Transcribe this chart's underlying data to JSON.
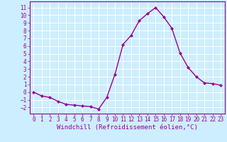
{
  "x": [
    0,
    1,
    2,
    3,
    4,
    5,
    6,
    7,
    8,
    9,
    10,
    11,
    12,
    13,
    14,
    15,
    16,
    17,
    18,
    19,
    20,
    21,
    22,
    23
  ],
  "y": [
    0,
    -0.5,
    -0.7,
    -1.2,
    -1.6,
    -1.7,
    -1.8,
    -1.9,
    -2.2,
    -0.7,
    2.3,
    6.2,
    7.4,
    9.3,
    10.2,
    11.0,
    9.8,
    8.3,
    5.1,
    3.2,
    2.0,
    1.2,
    1.1,
    0.9
  ],
  "line_color": "#990099",
  "marker": "D",
  "marker_size": 2,
  "xlabel": "Windchill (Refroidissement éolien,°C)",
  "xlabel_fontsize": 6.5,
  "xtick_fontsize": 5.5,
  "ytick_fontsize": 5.5,
  "ylim": [
    -2.8,
    11.8
  ],
  "xlim": [
    -0.5,
    23.5
  ],
  "yticks": [
    -2,
    -1,
    0,
    1,
    2,
    3,
    4,
    5,
    6,
    7,
    8,
    9,
    10,
    11
  ],
  "xticks": [
    0,
    1,
    2,
    3,
    4,
    5,
    6,
    7,
    8,
    9,
    10,
    11,
    12,
    13,
    14,
    15,
    16,
    17,
    18,
    19,
    20,
    21,
    22,
    23
  ],
  "bg_color": "#cceeff",
  "grid_color": "#ffffff",
  "line_width": 1.0,
  "spine_color": "#990099"
}
